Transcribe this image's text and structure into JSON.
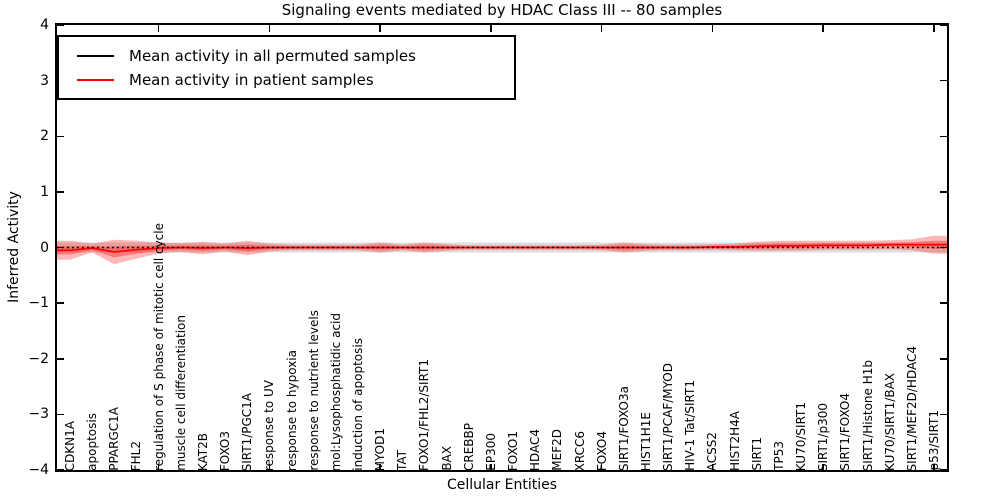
{
  "chart_data": {
    "type": "line",
    "title": "Signaling events mediated by HDAC Class III -- 80 samples",
    "xlabel": "Cellular Entities",
    "ylabel": "Inferred Activity",
    "ylim": [
      -4,
      4
    ],
    "ytick_labels": [
      "4",
      "3",
      "2",
      "1",
      "0",
      "−1",
      "−2",
      "−3",
      "−4"
    ],
    "grid": false,
    "legend_position": "upper left",
    "colors": {
      "permuted": "#000000",
      "patient": "#ff0000",
      "patient_band": "rgba(255,0,0,0.28)",
      "permuted_band": "rgba(0,0,0,0.13)"
    },
    "categories": [
      "CDKN1A",
      "apoptosis",
      "PPARGC1A",
      "FHL2",
      "regulation of S phase of mitotic cell cycle",
      "muscle cell differentiation",
      "KAT2B",
      "FOXO3",
      "SIRT1/PGC1A",
      "response to UV",
      "response to hypoxia",
      "response to nutrient levels",
      "mol:Lysophosphatidic acid",
      "induction of apoptosis",
      "MYOD1",
      "TAT",
      "FOXO1/FHL2/SIRT1",
      "BAX",
      "CREBBP",
      "EP300",
      "FOXO1",
      "HDAC4",
      "MEF2D",
      "XRCC6",
      "FOXO4",
      "SIRT1/FOXO3a",
      "HIST1H1E",
      "SIRT1/PCAF/MYOD",
      "HIV-1 Tat/SIRT1",
      "ACSS2",
      "HIST2H4A",
      "SIRT1",
      "TP53",
      "KU70/SIRT1",
      "SIRT1/p300",
      "SIRT1/FOXO4",
      "SIRT1/Histone H1b",
      "KU70/SIRT1/BAX",
      "SIRT1/MEF2D/HDAC4",
      "p53/SIRT1"
    ],
    "series": [
      {
        "name": "Mean activity in all permuted samples",
        "color": "#000000",
        "values": [
          0,
          0,
          0,
          0,
          0,
          0,
          0,
          0,
          0,
          0,
          0,
          0,
          0,
          0,
          0,
          0,
          0,
          0,
          0,
          0,
          0,
          0,
          0,
          0,
          0,
          0,
          0,
          0,
          0,
          0,
          0,
          0,
          0,
          0,
          0,
          0,
          0,
          0,
          0,
          0
        ],
        "std": [
          0.09,
          0.09,
          0.09,
          0.09,
          0.09,
          0.09,
          0.09,
          0.09,
          0.09,
          0.09,
          0.09,
          0.09,
          0.09,
          0.09,
          0.09,
          0.09,
          0.09,
          0.09,
          0.09,
          0.09,
          0.09,
          0.09,
          0.09,
          0.09,
          0.09,
          0.09,
          0.09,
          0.09,
          0.09,
          0.09,
          0.09,
          0.09,
          0.09,
          0.09,
          0.09,
          0.09,
          0.09,
          0.09,
          0.09,
          0.09
        ]
      },
      {
        "name": "Mean activity in patient samples",
        "color": "#ff0000",
        "values": [
          -0.05,
          -0.01,
          -0.08,
          -0.04,
          -0.01,
          0,
          -0.01,
          0,
          -0.01,
          0,
          0,
          0,
          0,
          0,
          0,
          0,
          0,
          0,
          0,
          0,
          0,
          0,
          0,
          0,
          0,
          0,
          0,
          0,
          0,
          0.01,
          0.01,
          0.02,
          0.03,
          0.03,
          0.04,
          0.04,
          0.04,
          0.05,
          0.05,
          0.05
        ],
        "std": [
          0.17,
          0.08,
          0.22,
          0.16,
          0.1,
          0.08,
          0.11,
          0.07,
          0.13,
          0.07,
          0.05,
          0.05,
          0.05,
          0.05,
          0.09,
          0.05,
          0.09,
          0.06,
          0.04,
          0.04,
          0.04,
          0.04,
          0.04,
          0.04,
          0.05,
          0.09,
          0.06,
          0.05,
          0.05,
          0.05,
          0.06,
          0.08,
          0.09,
          0.09,
          0.08,
          0.08,
          0.08,
          0.08,
          0.1,
          0.16
        ]
      }
    ]
  }
}
